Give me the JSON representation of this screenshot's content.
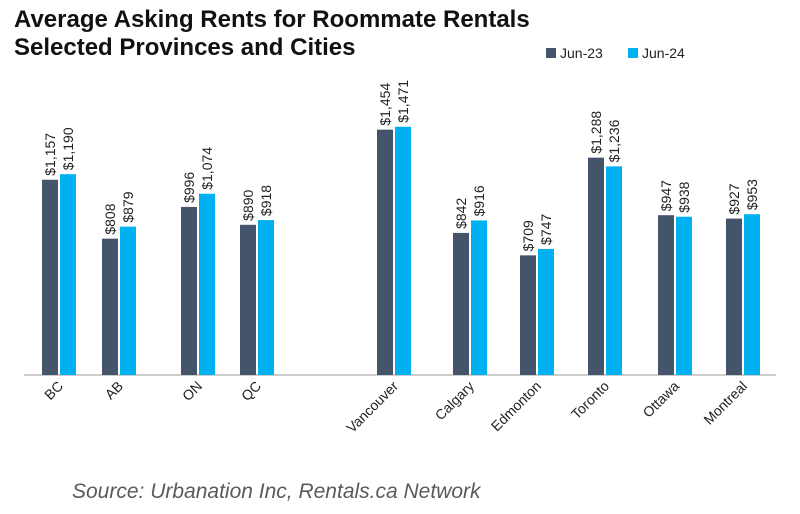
{
  "chart_data": {
    "type": "bar",
    "title": "Average Asking Rents for Roommate Rentals",
    "subtitle": "Selected Provinces and Cities",
    "xlabel": "",
    "ylabel": "",
    "ylim": [
      0,
      1600
    ],
    "grid": false,
    "legend_position": "top-right",
    "categories": [
      "BC",
      "AB",
      "ON",
      "QC",
      "Vancouver",
      "Calgary",
      "Edmonton",
      "Toronto",
      "Ottawa",
      "Montreal"
    ],
    "series": [
      {
        "name": "Jun-23",
        "color": "#44546a",
        "values": [
          1157,
          808,
          996,
          890,
          1454,
          842,
          709,
          1288,
          947,
          927
        ],
        "labels": [
          "$1,157",
          "$808",
          "$996",
          "$890",
          "$1,454",
          "$842",
          "$709",
          "$1,288",
          "$947",
          "$927"
        ]
      },
      {
        "name": "Jun-24",
        "color": "#00b0f0",
        "values": [
          1190,
          879,
          1074,
          918,
          1471,
          916,
          747,
          1236,
          938,
          953
        ],
        "labels": [
          "$1,190",
          "$879",
          "$1,074",
          "$918",
          "$1,471",
          "$916",
          "$747",
          "$1,236",
          "$938",
          "$953"
        ]
      }
    ]
  },
  "source": "Source: Urbanation Inc, Rentals.ca Network"
}
